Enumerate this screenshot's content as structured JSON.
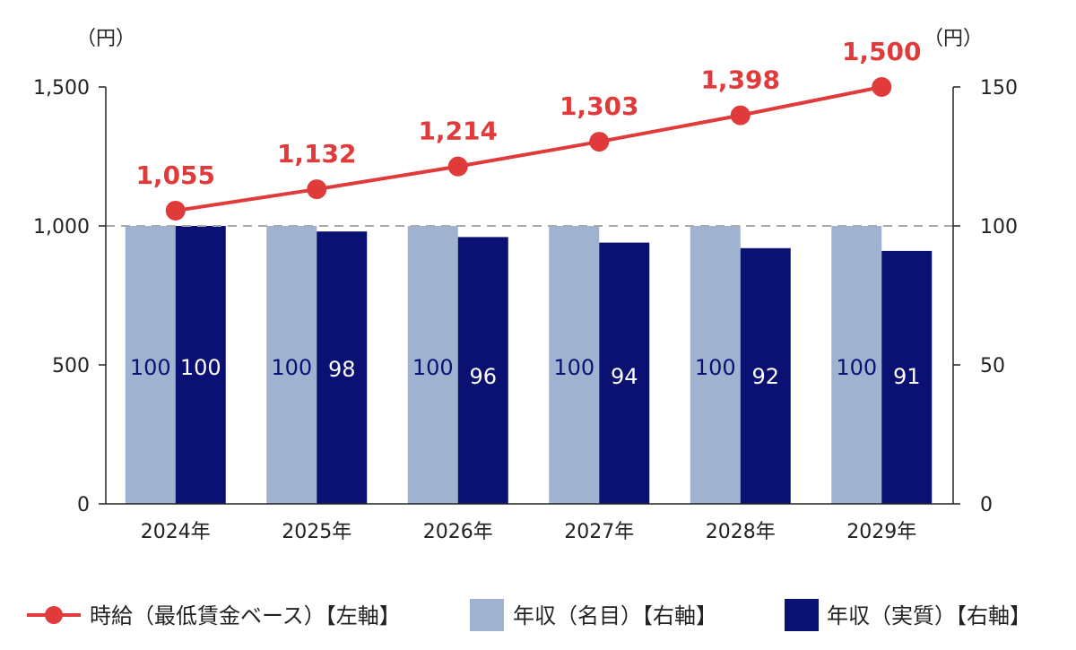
{
  "chart_data": {
    "type": "bar+line",
    "categories": [
      "2024年",
      "2025年",
      "2026年",
      "2027年",
      "2028年",
      "2029年"
    ],
    "left_axis": {
      "unit": "（円）",
      "range": [
        0,
        1500
      ],
      "ticks": [
        0,
        500,
        1000,
        1500
      ],
      "tick_labels": [
        "0",
        "500",
        "1,000",
        "1,500"
      ]
    },
    "right_axis": {
      "unit": "（円）",
      "range": [
        0,
        150
      ],
      "ticks": [
        0,
        50,
        100,
        150
      ],
      "tick_labels": [
        "0",
        "50",
        "100",
        "150"
      ]
    },
    "reference_line": {
      "axis": "left",
      "value": 1000,
      "style": "dashed"
    },
    "series": [
      {
        "name": "時給（最低賃金ベース）【左軸】",
        "type": "line",
        "axis": "left",
        "color": "#e03a3a",
        "values": [
          1055,
          1132,
          1214,
          1303,
          1398,
          1500
        ],
        "labels": [
          "1,055",
          "1,132",
          "1,214",
          "1,303",
          "1,398",
          "1,500"
        ]
      },
      {
        "name": "年収（名目）【右軸】",
        "type": "bar",
        "axis": "right",
        "color": "#9fb3d1",
        "values": [
          100,
          100,
          100,
          100,
          100,
          100
        ],
        "labels": [
          "100",
          "100",
          "100",
          "100",
          "100",
          "100"
        ]
      },
      {
        "name": "年収（実質）【右軸】",
        "type": "bar",
        "axis": "right",
        "color": "#0a1172",
        "values": [
          100,
          98,
          96,
          94,
          92,
          91
        ],
        "labels": [
          "100",
          "98",
          "96",
          "94",
          "92",
          "91"
        ]
      }
    ],
    "legend": "bottom"
  }
}
